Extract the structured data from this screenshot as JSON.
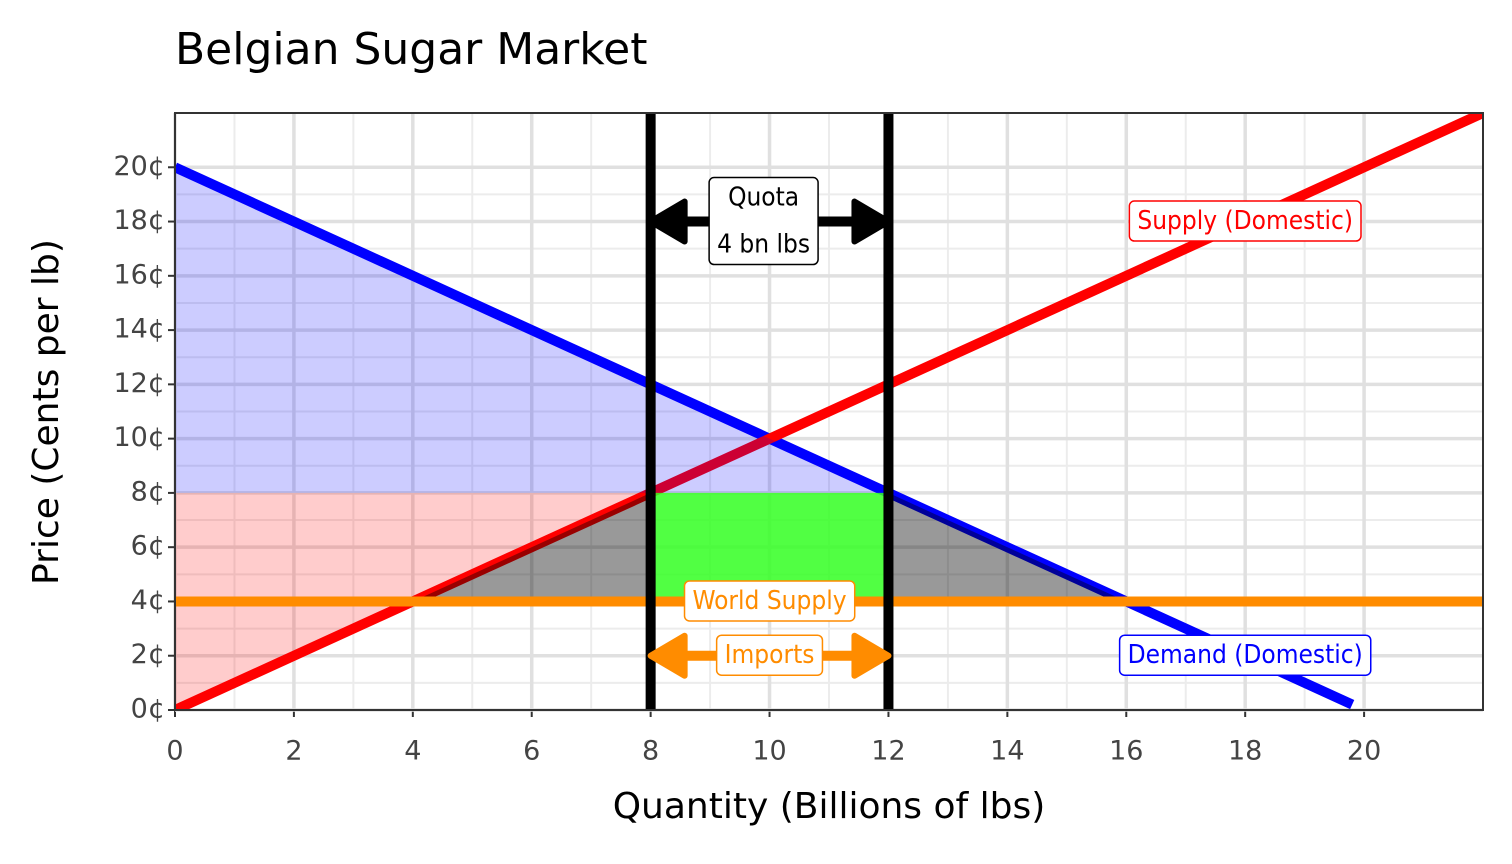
{
  "chart_data": {
    "type": "line",
    "title": "Belgian Sugar Market",
    "x_label": "Quantity (Billions of lbs)",
    "y_label": "Price (Cents per lb)",
    "xlim": [
      0,
      22
    ],
    "ylim": [
      0,
      22
    ],
    "xticks": [
      0,
      2,
      4,
      6,
      8,
      10,
      12,
      14,
      16,
      18,
      20
    ],
    "yticks": [
      {
        "value": 0,
        "label": "0¢"
      },
      {
        "value": 2,
        "label": "2¢"
      },
      {
        "value": 4,
        "label": "4¢"
      },
      {
        "value": 6,
        "label": "6¢"
      },
      {
        "value": 8,
        "label": "8¢"
      },
      {
        "value": 10,
        "label": "10¢"
      },
      {
        "value": 12,
        "label": "12¢"
      },
      {
        "value": 14,
        "label": "14¢"
      },
      {
        "value": 16,
        "label": "16¢"
      },
      {
        "value": 18,
        "label": "18¢"
      },
      {
        "value": 20,
        "label": "20¢"
      }
    ],
    "grid": true,
    "minor_grid": true,
    "series": [
      {
        "name": "Demand (Domestic)",
        "color": "#0000ff",
        "x": [
          0,
          19.8
        ],
        "values": [
          20,
          0.2
        ],
        "label_x": 18,
        "label_y": 2
      },
      {
        "name": "Supply (Domestic)",
        "color": "#ff0000",
        "x": [
          0,
          22
        ],
        "values": [
          0,
          22
        ],
        "label_x": 18,
        "label_y": 18
      },
      {
        "name": "World Supply",
        "color": "#ff8c00",
        "x": [
          0,
          22
        ],
        "values": [
          4,
          4
        ],
        "label_x": 10,
        "label_y": 4
      }
    ],
    "areas": [
      {
        "color": "#0000ff",
        "opacity": 0.2,
        "x": [
          0,
          12,
          0
        ],
        "values": [
          20,
          8,
          8
        ]
      },
      {
        "color": "#ff0000",
        "opacity": 0.2,
        "x": [
          0,
          8,
          0
        ],
        "values": [
          0,
          8,
          8
        ]
      },
      {
        "color": "#000000",
        "opacity": 0.4,
        "x": [
          4,
          8,
          8
        ],
        "values": [
          4,
          8,
          4
        ]
      },
      {
        "color": "#000000",
        "opacity": 0.4,
        "x": [
          12,
          16,
          12
        ],
        "values": [
          8,
          4,
          4
        ]
      },
      {
        "color": "#33ff22",
        "opacity": 0.85,
        "x": [
          8,
          12,
          12,
          8
        ],
        "values": [
          4,
          4,
          8,
          8
        ]
      }
    ],
    "quota_lines": {
      "x": [
        8,
        12
      ],
      "color": "#000000"
    },
    "annotations": [
      {
        "lines": [
          "Quota",
          "4 bn lbs"
        ],
        "x": 9.9,
        "y": 18,
        "arrow_x": [
          8,
          12
        ],
        "color": "#000000"
      },
      {
        "lines": [
          "Imports"
        ],
        "x": 10,
        "y": 2,
        "arrow_x": [
          8,
          12
        ],
        "color": "#ff8c00"
      }
    ]
  }
}
